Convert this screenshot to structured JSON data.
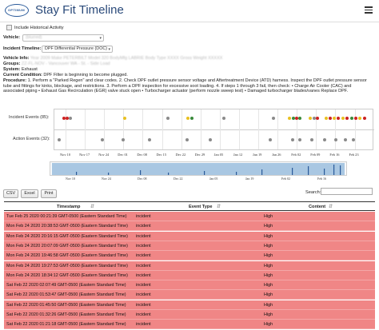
{
  "header": {
    "logo_text": "OPTIMUM",
    "title": "Stay Fit Timeline"
  },
  "filters": {
    "include_historical_label": "Include Historical Activity",
    "vehicle_label": "Vehicle:",
    "vehicle_value": "(blurred) ",
    "incident_timeline_label": "Incident Timeline:",
    "incident_timeline_value": "DPF Differential Pressure (DOC)"
  },
  "info": {
    "vehicle_info_label": "Vehicle Info:",
    "vehicle_info_value": "Year 2009  Make PETERBILT  Model 320  BodyMfg LABRIE  Body Type XXXX  Gross Weight XXXXX",
    "groups_label": "Groups:",
    "groups_value": "ZZ-FL-NOV - Vancouver WA - St. - Side Load",
    "system_label": "System:",
    "system_value": "Exhaust",
    "condition_label": "Current Condition:",
    "condition_value": "DPF Filter is beginning to become plugged.",
    "procedure_label": "Procedure:",
    "procedure_value": "1. Perform a \"Parked Regen\" and clear codes. 2. Check DPF outlet pressure sensor voltage and Aftertreatment Device (ATD) harness. Inspect the DPF outlet pressure sensor tube and fittings for kinks, blockage, and restrictions. 3. Perform a DPF inspection for excessive soot loading. 4. If steps 1 through 3 fail, then check: • Charge Air Cooler (CAC) and associated piping • Exhaust Gas Recirculation (EGR) valve stuck open • Turbocharger actuator (perform nozzle sweep test) • Damaged turbocharger blades/vanes Replace DPF."
  },
  "timeline": {
    "incident_label": "Incident Events (85):",
    "action_label": "Action Events (32):",
    "ticks": [
      "Nov 10",
      "Nov 17",
      "Nov 24",
      "Dec 01",
      "Dec 08",
      "Dec 15",
      "Dec 22",
      "Dec 29",
      "Jan 05",
      "Jan 12",
      "Jan 19",
      "Jan 26",
      "Feb 02",
      "Feb 09",
      "Feb 16",
      "Feb 23"
    ],
    "colors": {
      "red": "#cc2222",
      "gray": "#8a8a8a",
      "yellow": "#e8c020",
      "green": "#3a8a3a",
      "navigator": "#a9c7e2"
    }
  },
  "toolbar": {
    "csv": "CSV",
    "excel": "Excel",
    "print": "Print",
    "search_label": "Search:",
    "search_value": ""
  },
  "table": {
    "headers": [
      "Timestamp",
      "Event Type",
      "Content"
    ],
    "rows": [
      [
        "Tue Feb 25 2020 00:21:39 GMT-0500 (Eastern Standard Time)",
        "incident",
        "High"
      ],
      [
        "Mon Feb 24 2020 20:38:53 GMT-0500 (Eastern Standard Time)",
        "incident",
        "High"
      ],
      [
        "Mon Feb 24 2020 20:16:15 GMT-0500 (Eastern Standard Time)",
        "incident",
        "High"
      ],
      [
        "Mon Feb 24 2020 20:07:09 GMT-0500 (Eastern Standard Time)",
        "incident",
        "High"
      ],
      [
        "Mon Feb 24 2020 19:46:58 GMT-0500 (Eastern Standard Time)",
        "incident",
        "High"
      ],
      [
        "Mon Feb 24 2020 19:27:53 GMT-0500 (Eastern Standard Time)",
        "incident",
        "High"
      ],
      [
        "Mon Feb 24 2020 18:34:12 GMT-0500 (Eastern Standard Time)",
        "incident",
        "High"
      ],
      [
        "Sat Feb 22 2020 02:07:49 GMT-0500 (Eastern Standard Time)",
        "incident",
        "High"
      ],
      [
        "Sat Feb 22 2020 01:53:47 GMT-0500 (Eastern Standard Time)",
        "incident",
        "High"
      ],
      [
        "Sat Feb 22 2020 01:45:50 GMT-0500 (Eastern Standard Time)",
        "incident",
        "High"
      ],
      [
        "Sat Feb 22 2020 01:32:26 GMT-0500 (Eastern Standard Time)",
        "incident",
        "High"
      ],
      [
        "Sat Feb 22 2020 01:21:18 GMT-0500 (Eastern Standard Time)",
        "incident",
        "High"
      ]
    ]
  }
}
